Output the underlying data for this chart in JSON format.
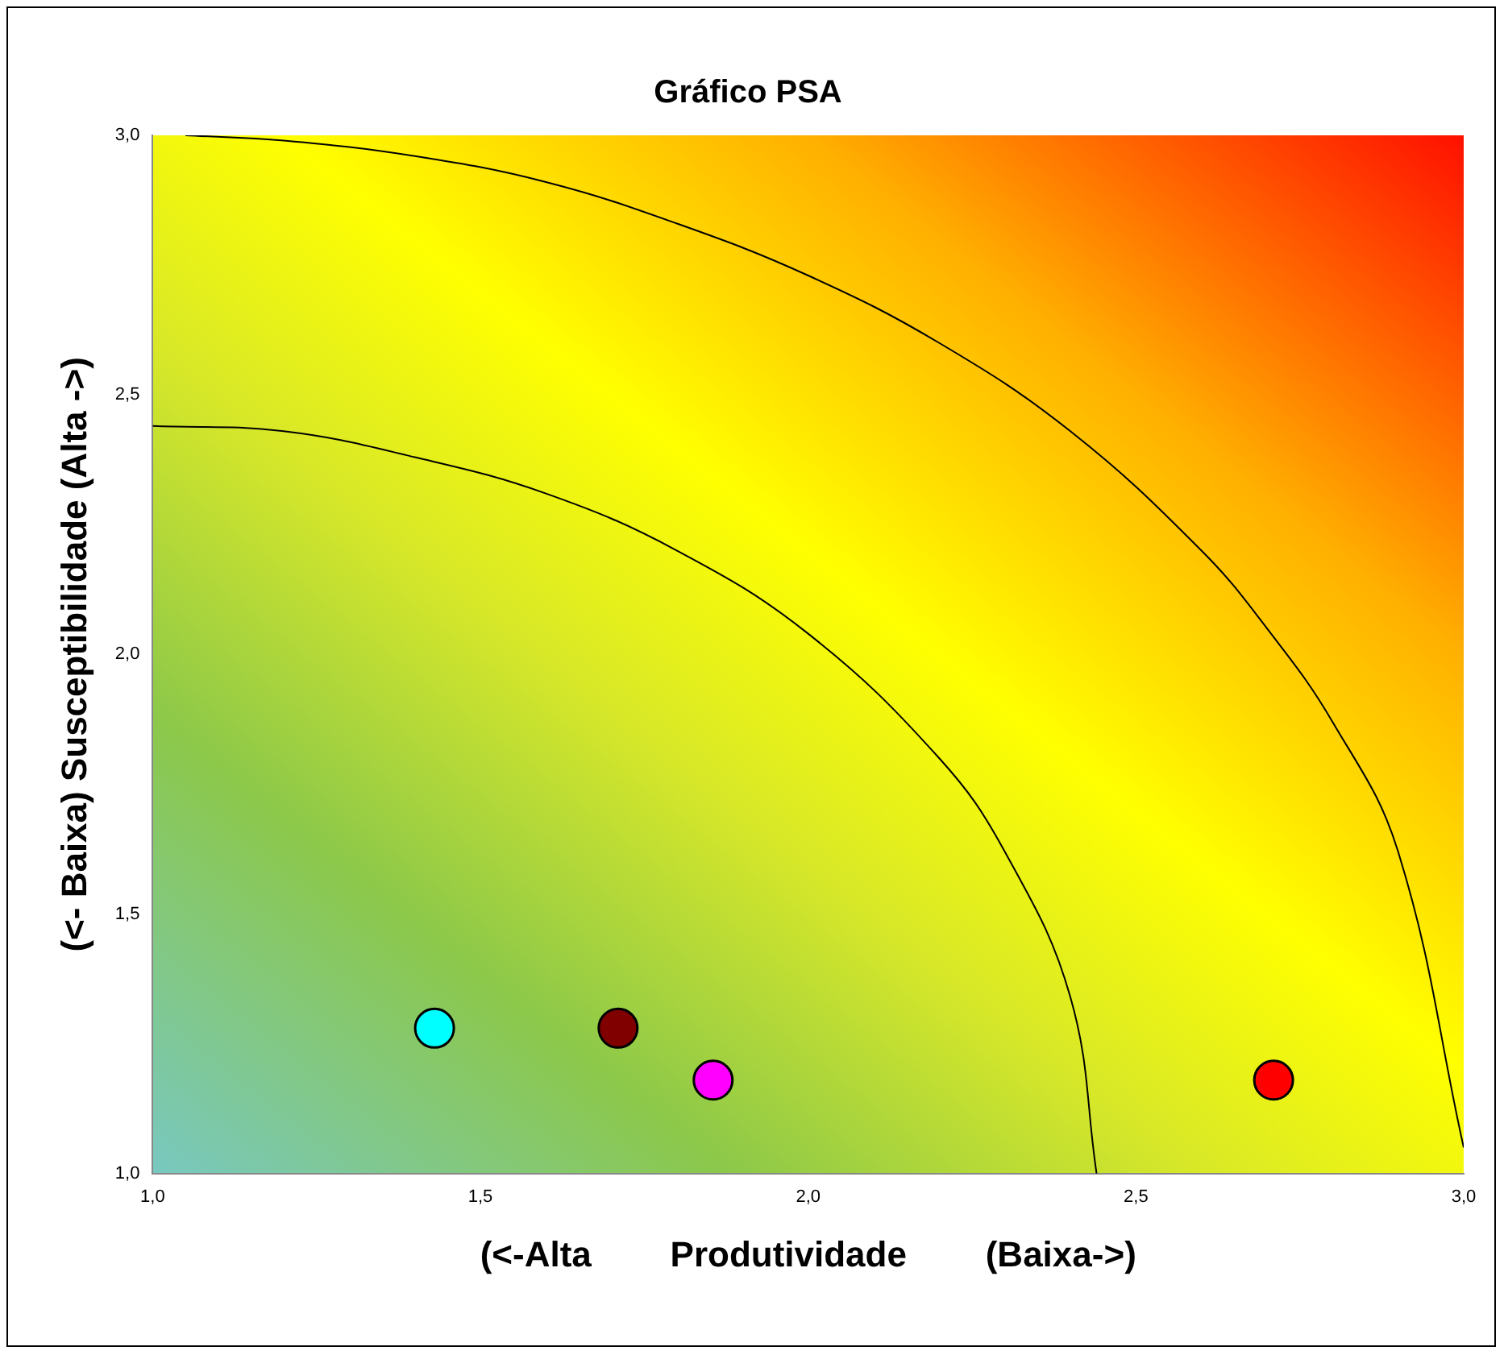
{
  "chart_data": {
    "type": "scatter",
    "title": "Gráfico PSA",
    "xlabel": "(<-Alta        Produtividade        (Baixa->)",
    "ylabel": "(<- Baixa) Susceptibilidade (Alta ->)",
    "xlim": [
      1,
      3
    ],
    "ylim": [
      1,
      3
    ],
    "xticks": [
      {
        "value": 1,
        "label": "1,0"
      },
      {
        "value": 1.5,
        "label": "1,5"
      },
      {
        "value": 2,
        "label": "2,0"
      },
      {
        "value": 2.5,
        "label": "2,5"
      },
      {
        "value": 3,
        "label": "3,0"
      }
    ],
    "yticks": [
      {
        "value": 1,
        "label": "1,0"
      },
      {
        "value": 1.5,
        "label": "1,5"
      },
      {
        "value": 2,
        "label": "2,0"
      },
      {
        "value": 2.5,
        "label": "2,5"
      },
      {
        "value": 3,
        "label": "3,0"
      }
    ],
    "grid": false,
    "legend": false,
    "series": [
      {
        "type": "scatter",
        "marker": "circle",
        "x": [
          1.43,
          1.71,
          1.855,
          2.71
        ],
        "values": [
          1.28,
          1.28,
          1.18,
          1.18
        ],
        "colors": [
          "#00ffff",
          "#800000",
          "#ff00ff",
          "#ff0000"
        ]
      },
      {
        "type": "line",
        "marker": "none",
        "line_style": "solid",
        "color": "#000000",
        "x": [
          1,
          1.2,
          1.4,
          1.6,
          1.8,
          2,
          2.2,
          2.3,
          2.4,
          2.44
        ],
        "values": [
          2.44,
          2.43,
          2.38,
          2.31,
          2.2,
          2.04,
          1.8,
          1.62,
          1.34,
          1
        ]
      },
      {
        "type": "line",
        "marker": "none",
        "line_style": "solid",
        "color": "#000000",
        "x": [
          1.05,
          1.2,
          1.4,
          1.6,
          1.8,
          2,
          2.2,
          2.4,
          2.6,
          2.7,
          2.8,
          2.9,
          3
        ],
        "values": [
          3,
          2.99,
          2.96,
          2.91,
          2.83,
          2.73,
          2.6,
          2.43,
          2.2,
          2.05,
          1.87,
          1.62,
          1.05
        ]
      }
    ]
  }
}
